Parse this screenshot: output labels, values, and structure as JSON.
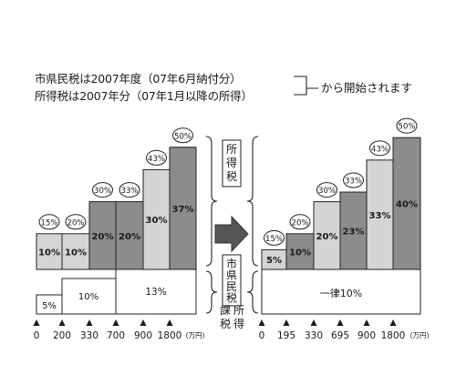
{
  "header": {
    "line1": "市県民税は2007年度（07年6月納付分）",
    "line2": "所得税は2007年分（07年1月以降の所得）",
    "callout": "から開始されます"
  },
  "labels": {
    "income_tax": "所得税",
    "resident_tax": "市県民税",
    "taxable_income": "課税所得",
    "unit": "(万円)"
  },
  "colors": {
    "light_fill": "#d4d4d4",
    "dark_fill": "#8c8c8c",
    "white_fill": "#ffffff",
    "stroke": "#222222"
  },
  "chart_data": [
    {
      "type": "bar",
      "name_note": "before",
      "x_ticks": [
        "0",
        "200",
        "330",
        "700",
        "900",
        "1800"
      ],
      "income_tax_brackets": [
        {
          "from": "0",
          "to": "200",
          "rate": "10%",
          "total": "15%",
          "shade": "light"
        },
        {
          "from": "200",
          "to": "330",
          "rate": "10%",
          "total": "20%",
          "shade": "light"
        },
        {
          "from": "330",
          "to": "700",
          "rate": "20%",
          "total": "30%",
          "shade": "dark"
        },
        {
          "from": "700",
          "to": "900",
          "rate": "20%",
          "total": "33%",
          "shade": "dark"
        },
        {
          "from": "900",
          "to": "1800",
          "rate": "30%",
          "total": "43%",
          "shade": "light"
        },
        {
          "from": "1800",
          "to": "",
          "rate": "37%",
          "total": "50%",
          "shade": "dark"
        }
      ],
      "resident_tax_brackets": [
        {
          "from": "0",
          "to": "200",
          "rate": "5%"
        },
        {
          "from": "200",
          "to": "700",
          "rate": "10%"
        },
        {
          "from": "700",
          "to": "",
          "rate": "13%"
        }
      ]
    },
    {
      "type": "bar",
      "name_note": "after",
      "x_ticks": [
        "0",
        "195",
        "330",
        "695",
        "900",
        "1800"
      ],
      "income_tax_brackets": [
        {
          "from": "0",
          "to": "195",
          "rate": "5%",
          "total": "15%",
          "shade": "light"
        },
        {
          "from": "195",
          "to": "330",
          "rate": "10%",
          "total": "20%",
          "shade": "dark"
        },
        {
          "from": "330",
          "to": "695",
          "rate": "20%",
          "total": "30%",
          "shade": "light"
        },
        {
          "from": "695",
          "to": "900",
          "rate": "23%",
          "total": "33%",
          "shade": "dark"
        },
        {
          "from": "900",
          "to": "1800",
          "rate": "33%",
          "total": "43%",
          "shade": "light"
        },
        {
          "from": "1800",
          "to": "",
          "rate": "40%",
          "total": "50%",
          "shade": "dark"
        }
      ],
      "resident_tax_brackets": [
        {
          "from": "0",
          "to": "",
          "rate": "一律10%"
        }
      ]
    }
  ]
}
